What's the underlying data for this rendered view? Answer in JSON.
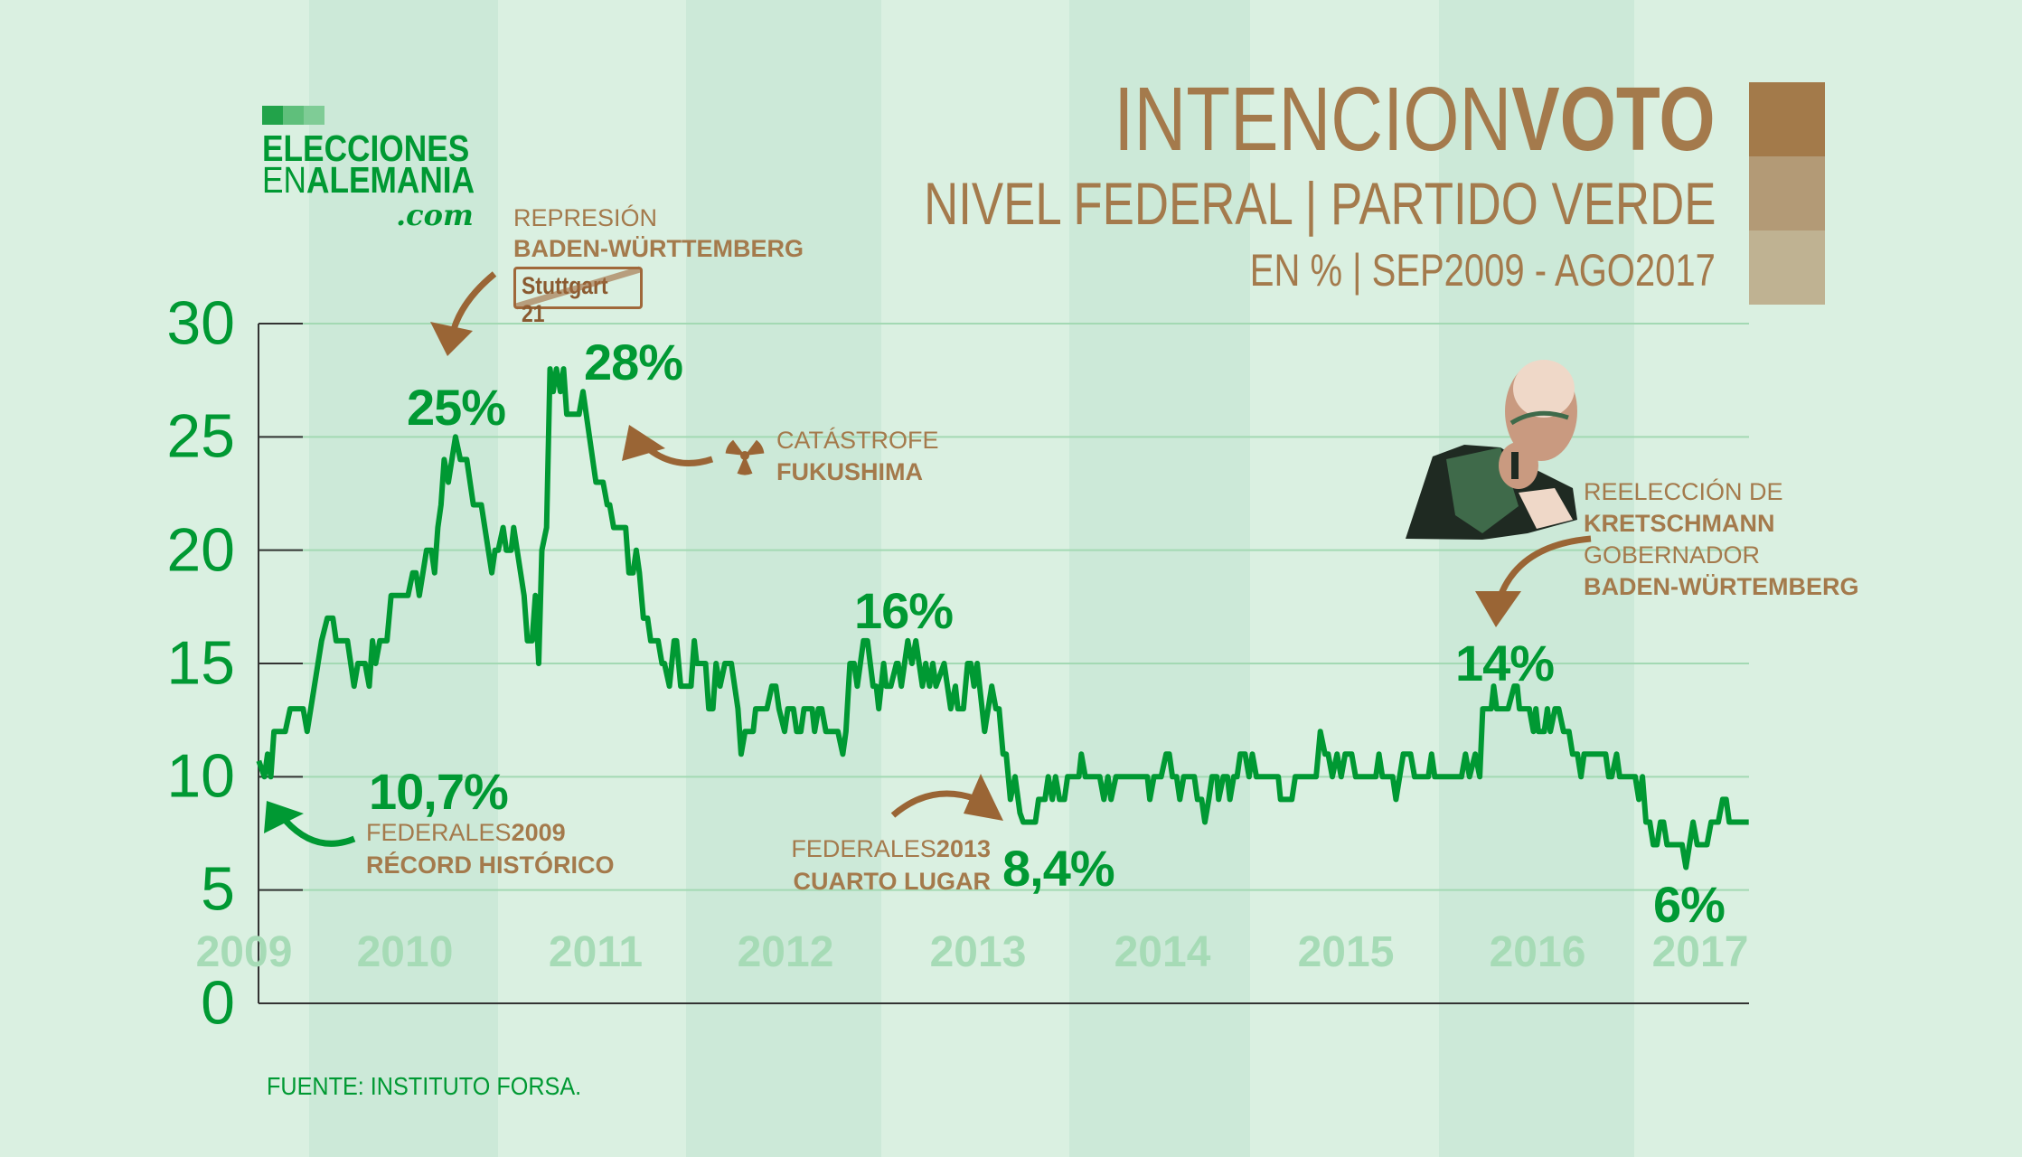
{
  "logo": {
    "line1": "ELECCIONES",
    "line2_light": "EN",
    "line2_bold": "ALEMANIA",
    "line3": ".com",
    "colors": [
      "#22a34a",
      "#5fbf7b",
      "#7fcc96"
    ]
  },
  "header": {
    "title_light": "INTENCION",
    "title_bold": "VOTO",
    "subtitle": "NIVEL FEDERAL | PARTIDO VERDE",
    "subtitle2": "EN % | SEP2009 - AGO2017",
    "swatches": [
      "#a37a4a",
      "#b39a76",
      "#bfb292"
    ]
  },
  "annotations": {
    "stuttgart": {
      "line1": "REPRESIÓN",
      "line2": "BADEN-WÜRTTEMBERG",
      "sign": "Stuttgart 21"
    },
    "fukushima": {
      "line1": "CATÁSTROFE",
      "line2": "FUKUSHIMA",
      "icon": "radiation-icon"
    },
    "fed2009": {
      "line1_light": "FEDERALES",
      "line1_bold": "2009",
      "line2": "RÉCORD HISTÓRICO"
    },
    "fed2013": {
      "line1_light": "FEDERALES",
      "line1_bold": "2013",
      "line2": "CUARTO LUGAR"
    },
    "kretschmann": {
      "line1": "REELECCIÓN DE",
      "line2": "KRETSCHMANN",
      "line3": "GOBERNADOR",
      "line4": "BADEN-WÜRTEMBERG"
    },
    "values": {
      "p25": "25%",
      "p28": "28%",
      "p16": "16%",
      "p107": "10,7%",
      "p84": "8,4%",
      "p14": "14%",
      "p6": "6%"
    }
  },
  "source": "FUENTE: INSTITUTO FORSA.",
  "chart_data": {
    "type": "line",
    "title": "INTENCIONVOTO",
    "xlabel": "",
    "ylabel": "",
    "x_ticks": [
      "2009",
      "2010",
      "2011",
      "2012",
      "2013",
      "2014",
      "2015",
      "2016",
      "2017"
    ],
    "y_ticks": [
      "0",
      "5",
      "10",
      "15",
      "20",
      "25",
      "30"
    ],
    "ylim": [
      0,
      30
    ],
    "xlim": [
      2009.73,
      2017.64
    ],
    "grid": "horizontal",
    "colors": {
      "line": "#009933",
      "axis": "#333333",
      "grid": "#a3d9b3"
    },
    "series": [
      {
        "points": [
          [
            2009.73,
            10.7
          ],
          [
            2009.76,
            10
          ],
          [
            2009.777,
            11
          ],
          [
            2009.794,
            10
          ],
          [
            2009.811,
            12
          ],
          [
            2009.871,
            12
          ],
          [
            2009.897,
            13
          ],
          [
            2009.966,
            13
          ],
          [
            2009.987,
            12
          ],
          [
            2010.064,
            16
          ],
          [
            2010.094,
            17
          ],
          [
            2010.124,
            17
          ],
          [
            2010.141,
            16
          ],
          [
            2010.201,
            16
          ],
          [
            2010.236,
            14
          ],
          [
            2010.257,
            15
          ],
          [
            2010.295,
            15
          ],
          [
            2010.317,
            14
          ],
          [
            2010.334,
            16
          ],
          [
            2010.351,
            15
          ],
          [
            2010.373,
            16
          ],
          [
            2010.411,
            16
          ],
          [
            2010.433,
            18
          ],
          [
            2010.523,
            18
          ],
          [
            2010.548,
            19
          ],
          [
            2010.565,
            19
          ],
          [
            2010.583,
            18
          ],
          [
            2010.621,
            20
          ],
          [
            2010.647,
            20
          ],
          [
            2010.664,
            19
          ],
          [
            2010.681,
            21
          ],
          [
            2010.698,
            22
          ],
          [
            2010.715,
            24
          ],
          [
            2010.737,
            23
          ],
          [
            2010.775,
            25
          ],
          [
            2010.801,
            24
          ],
          [
            2010.835,
            24
          ],
          [
            2010.87,
            22
          ],
          [
            2010.912,
            22
          ],
          [
            2010.968,
            19
          ],
          [
            2010.985,
            20
          ],
          [
            2011.002,
            20
          ],
          [
            2011.028,
            21
          ],
          [
            2011.045,
            20
          ],
          [
            2011.071,
            20
          ],
          [
            2011.084,
            21
          ],
          [
            2011.139,
            18
          ],
          [
            2011.157,
            16
          ],
          [
            2011.182,
            16
          ],
          [
            2011.199,
            18
          ],
          [
            2011.217,
            15
          ],
          [
            2011.234,
            20
          ],
          [
            2011.259,
            21
          ],
          [
            2011.277,
            28
          ],
          [
            2011.294,
            27
          ],
          [
            2011.311,
            28
          ],
          [
            2011.332,
            27
          ],
          [
            2011.349,
            28
          ],
          [
            2011.366,
            26
          ],
          [
            2011.431,
            26
          ],
          [
            2011.452,
            27
          ],
          [
            2011.521,
            23
          ],
          [
            2011.559,
            23
          ],
          [
            2011.581,
            22
          ],
          [
            2011.594,
            22
          ],
          [
            2011.615,
            21
          ],
          [
            2011.679,
            21
          ],
          [
            2011.696,
            19
          ],
          [
            2011.718,
            19
          ],
          [
            2011.735,
            20
          ],
          [
            2011.752,
            19
          ],
          [
            2011.773,
            17
          ],
          [
            2011.795,
            17
          ],
          [
            2011.812,
            16
          ],
          [
            2011.851,
            16
          ],
          [
            2011.872,
            15
          ],
          [
            2011.885,
            15
          ],
          [
            2011.911,
            14
          ],
          [
            2011.936,
            16
          ],
          [
            2011.949,
            16
          ],
          [
            2011.971,
            14
          ],
          [
            2012.026,
            14
          ],
          [
            2012.043,
            16
          ],
          [
            2012.056,
            15
          ],
          [
            2012.103,
            15
          ],
          [
            2012.12,
            13
          ],
          [
            2012.142,
            13
          ],
          [
            2012.159,
            15
          ],
          [
            2012.18,
            14
          ],
          [
            2012.206,
            15
          ],
          [
            2012.24,
            15
          ],
          [
            2012.275,
            13
          ],
          [
            2012.292,
            11
          ],
          [
            2012.313,
            12
          ],
          [
            2012.356,
            12
          ],
          [
            2012.369,
            13
          ],
          [
            2012.429,
            13
          ],
          [
            2012.455,
            14
          ],
          [
            2012.476,
            14
          ],
          [
            2012.493,
            13
          ],
          [
            2012.523,
            12
          ],
          [
            2012.54,
            13
          ],
          [
            2012.57,
            13
          ],
          [
            2012.587,
            12
          ],
          [
            2012.609,
            12
          ],
          [
            2012.626,
            13
          ],
          [
            2012.669,
            13
          ],
          [
            2012.682,
            12
          ],
          [
            2012.703,
            13
          ],
          [
            2012.72,
            13
          ],
          [
            2012.742,
            12
          ],
          [
            2012.806,
            12
          ],
          [
            2012.832,
            11
          ],
          [
            2012.849,
            12
          ],
          [
            2012.87,
            15
          ],
          [
            2012.892,
            15
          ],
          [
            2012.909,
            14
          ],
          [
            2012.942,
            16
          ],
          [
            2012.963,
            16
          ],
          [
            2012.993,
            14
          ],
          [
            2013.01,
            14
          ],
          [
            2013.023,
            13
          ],
          [
            2013.049,
            15
          ],
          [
            2013.062,
            14
          ],
          [
            2013.087,
            14
          ],
          [
            2013.117,
            15
          ],
          [
            2013.126,
            15
          ],
          [
            2013.143,
            14
          ],
          [
            2013.177,
            16
          ],
          [
            2013.199,
            15
          ],
          [
            2013.22,
            16
          ],
          [
            2013.255,
            14
          ],
          [
            2013.272,
            15
          ],
          [
            2013.293,
            14
          ],
          [
            2013.31,
            15
          ],
          [
            2013.327,
            14
          ],
          [
            2013.37,
            15
          ],
          [
            2013.405,
            13
          ],
          [
            2013.43,
            14
          ],
          [
            2013.443,
            13
          ],
          [
            2013.473,
            13
          ],
          [
            2013.495,
            15
          ],
          [
            2013.512,
            15
          ],
          [
            2013.529,
            14
          ],
          [
            2013.546,
            15
          ],
          [
            2013.559,
            14
          ],
          [
            2013.585,
            12
          ],
          [
            2013.623,
            14
          ],
          [
            2013.645,
            13
          ],
          [
            2013.662,
            13
          ],
          [
            2013.683,
            11
          ],
          [
            2013.7,
            11
          ],
          [
            2013.722,
            9
          ],
          [
            2013.747,
            10
          ],
          [
            2013.773,
            8.4
          ],
          [
            2013.79,
            8
          ],
          [
            2013.855,
            8
          ],
          [
            2013.872,
            9
          ],
          [
            2013.906,
            9
          ],
          [
            2013.923,
            10
          ],
          [
            2013.945,
            9
          ],
          [
            2013.962,
            10
          ],
          [
            2013.983,
            9
          ],
          [
            2014.009,
            9
          ],
          [
            2014.026,
            10
          ],
          [
            2014.086,
            10
          ],
          [
            2014.099,
            11
          ],
          [
            2014.12,
            10
          ],
          [
            2014.197,
            10
          ],
          [
            2014.219,
            9
          ],
          [
            2014.24,
            10
          ],
          [
            2014.257,
            9
          ],
          [
            2014.283,
            10
          ],
          [
            2014.45,
            10
          ],
          [
            2014.463,
            9
          ],
          [
            2014.485,
            10
          ],
          [
            2014.523,
            10
          ],
          [
            2014.549,
            11
          ],
          [
            2014.566,
            11
          ],
          [
            2014.583,
            10
          ],
          [
            2014.605,
            10
          ],
          [
            2014.622,
            9
          ],
          [
            2014.643,
            10
          ],
          [
            2014.699,
            10
          ],
          [
            2014.716,
            9
          ],
          [
            2014.738,
            9
          ],
          [
            2014.755,
            8
          ],
          [
            2014.776,
            9
          ],
          [
            2014.793,
            10
          ],
          [
            2014.819,
            10
          ],
          [
            2014.828,
            9
          ],
          [
            2014.853,
            10
          ],
          [
            2014.875,
            10
          ],
          [
            2014.888,
            9
          ],
          [
            2014.909,
            10
          ],
          [
            2014.926,
            10
          ],
          [
            2014.943,
            11
          ],
          [
            2014.969,
            11
          ],
          [
            2014.99,
            10
          ],
          [
            2015.007,
            11
          ],
          [
            2015.029,
            10
          ],
          [
            2015.145,
            10
          ],
          [
            2015.157,
            9
          ],
          [
            2015.217,
            9
          ],
          [
            2015.235,
            10
          ],
          [
            2015.346,
            10
          ],
          [
            2015.368,
            12
          ],
          [
            2015.393,
            11
          ],
          [
            2015.41,
            11
          ],
          [
            2015.432,
            10
          ],
          [
            2015.457,
            11
          ],
          [
            2015.479,
            10
          ],
          [
            2015.5,
            11
          ],
          [
            2015.535,
            11
          ],
          [
            2015.556,
            10
          ],
          [
            2015.663,
            10
          ],
          [
            2015.68,
            11
          ],
          [
            2015.698,
            10
          ],
          [
            2015.753,
            10
          ],
          [
            2015.77,
            9
          ],
          [
            2015.809,
            11
          ],
          [
            2015.848,
            11
          ],
          [
            2015.869,
            10
          ],
          [
            2015.942,
            10
          ],
          [
            2015.959,
            11
          ],
          [
            2015.976,
            10
          ],
          [
            2016.118,
            10
          ],
          [
            2016.139,
            11
          ],
          [
            2016.161,
            10
          ],
          [
            2016.191,
            11
          ],
          [
            2016.215,
            10
          ],
          [
            2016.231,
            13
          ],
          [
            2016.276,
            13
          ],
          [
            2016.289,
            14
          ],
          [
            2016.305,
            13
          ],
          [
            2016.366,
            13
          ],
          [
            2016.398,
            14
          ],
          [
            2016.414,
            14
          ],
          [
            2016.426,
            13
          ],
          [
            2016.478,
            13
          ],
          [
            2016.5,
            12
          ],
          [
            2016.513,
            13
          ],
          [
            2016.526,
            12
          ],
          [
            2016.558,
            12
          ],
          [
            2016.574,
            13
          ],
          [
            2016.59,
            12
          ],
          [
            2016.615,
            13
          ],
          [
            2016.634,
            13
          ],
          [
            2016.66,
            12
          ],
          [
            2016.689,
            12
          ],
          [
            2016.708,
            11
          ],
          [
            2016.734,
            11
          ],
          [
            2016.753,
            10
          ],
          [
            2016.769,
            11
          ],
          [
            2016.884,
            11
          ],
          [
            2016.9,
            10
          ],
          [
            2016.916,
            10
          ],
          [
            2016.942,
            11
          ],
          [
            2016.958,
            10
          ],
          [
            2017.041,
            10
          ],
          [
            2017.06,
            9
          ],
          [
            2017.079,
            10
          ],
          [
            2017.098,
            8
          ],
          [
            2017.118,
            8
          ],
          [
            2017.137,
            7
          ],
          [
            2017.156,
            7
          ],
          [
            2017.175,
            8
          ],
          [
            2017.191,
            8
          ],
          [
            2017.21,
            7
          ],
          [
            2017.29,
            7
          ],
          [
            2017.31,
            6
          ],
          [
            2017.348,
            8
          ],
          [
            2017.37,
            7
          ],
          [
            2017.422,
            7
          ],
          [
            2017.444,
            8
          ],
          [
            2017.482,
            8
          ],
          [
            2017.505,
            9
          ],
          [
            2017.524,
            9
          ],
          [
            2017.54,
            8
          ],
          [
            2017.644,
            8
          ]
        ]
      }
    ]
  }
}
